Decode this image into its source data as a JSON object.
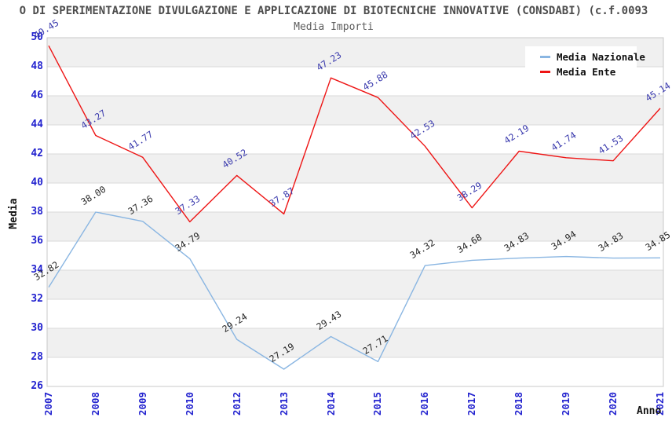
{
  "header": {
    "title": "O DI SPERIMENTAZIONE DIVULGAZIONE E APPLICAZIONE DI BIOTECNICHE INNOVATIVE (CONSDABI) (c.f.0093",
    "subtitle": "Media Importi"
  },
  "legend": {
    "position": "top-right",
    "items": [
      {
        "label": "Media Nazionale",
        "color": "#8ab6e2"
      },
      {
        "label": "Media Ente",
        "color": "#ee1515"
      }
    ]
  },
  "axes": {
    "y_label": "Media",
    "x_label": "Anno",
    "tick_color": "#2323cf"
  },
  "colors": {
    "background": "#ffffff",
    "band_gray": "#f0f0f0",
    "gridline": "#dadada",
    "frame": "#c8c8c8",
    "title_text": "#4d4d4d",
    "nazionale_line": "#8ab6e2",
    "ente_line": "#ee1515",
    "nazionale_label": "#262626",
    "ente_label": "#3a3aad"
  },
  "chart_data": {
    "type": "line",
    "title": "Media Importi",
    "xlabel": "Anno",
    "ylabel": "Media",
    "ylim": [
      26,
      50
    ],
    "yticks": [
      26,
      28,
      30,
      32,
      34,
      36,
      38,
      40,
      42,
      44,
      46,
      48,
      50
    ],
    "grid": "alternating-horizontal-bands",
    "legend_position": "top-right",
    "categories": [
      "2007",
      "2008",
      "2009",
      "2010",
      "2012",
      "2013",
      "2014",
      "2015",
      "2016",
      "2017",
      "2018",
      "2019",
      "2020",
      "2021"
    ],
    "series": [
      {
        "name": "Media Nazionale",
        "color": "#8ab6e2",
        "label_color": "#262626",
        "values": [
          32.82,
          38.0,
          37.36,
          34.79,
          29.24,
          27.19,
          29.43,
          27.71,
          34.32,
          34.68,
          34.83,
          34.94,
          34.83,
          34.85
        ]
      },
      {
        "name": "Media Ente",
        "color": "#ee1515",
        "label_color": "#3a3aad",
        "values": [
          49.45,
          43.27,
          41.77,
          37.33,
          40.52,
          37.87,
          47.23,
          45.88,
          42.53,
          38.29,
          42.19,
          41.74,
          41.53,
          45.14
        ]
      }
    ]
  }
}
